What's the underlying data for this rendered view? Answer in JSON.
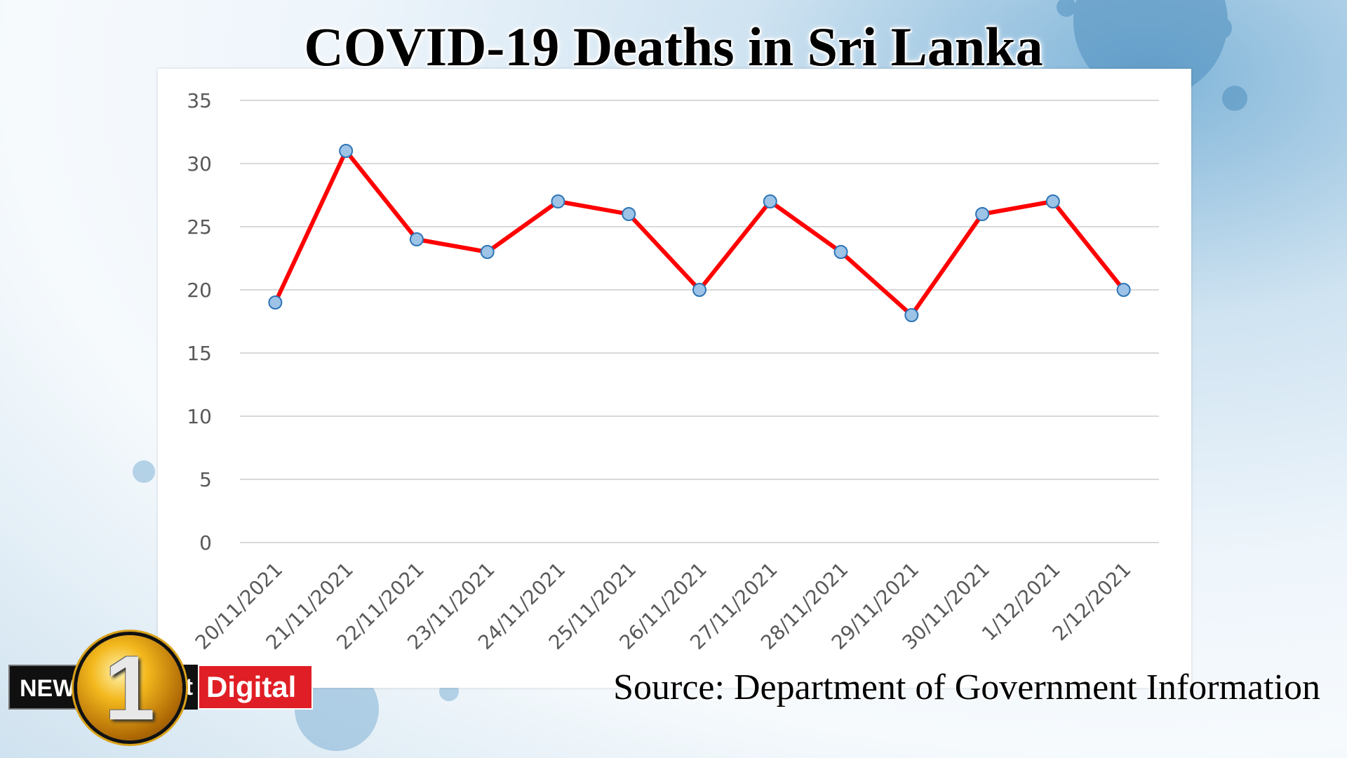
{
  "header": {
    "title": "COVID-19 Deaths in Sri Lanka"
  },
  "footer": {
    "source": "Source: Department of Government Information"
  },
  "logo": {
    "news": "NEWS",
    "number": "1",
    "suffix": "st",
    "digital": "Digital"
  },
  "colors": {
    "line": "#ff0000",
    "marker_fill": "#9dc3e6",
    "marker_stroke": "#2e75b6",
    "grid": "#d9d9d9"
  },
  "chart_data": {
    "type": "line",
    "title": "COVID-19 Deaths in Sri Lanka",
    "xlabel": "",
    "ylabel": "",
    "ylim": [
      0,
      35
    ],
    "yticks": [
      0,
      5,
      10,
      15,
      20,
      25,
      30,
      35
    ],
    "grid": true,
    "legend": "none",
    "categories": [
      "20/11/2021",
      "21/11/2021",
      "22/11/2021",
      "23/11/2021",
      "24/11/2021",
      "25/11/2021",
      "26/11/2021",
      "27/11/2021",
      "28/11/2021",
      "29/11/2021",
      "30/11/2021",
      "1/12/2021",
      "2/12/2021"
    ],
    "series": [
      {
        "values": [
          19,
          31,
          24,
          23,
          27,
          26,
          20,
          27,
          23,
          18,
          26,
          27,
          20
        ]
      }
    ]
  }
}
